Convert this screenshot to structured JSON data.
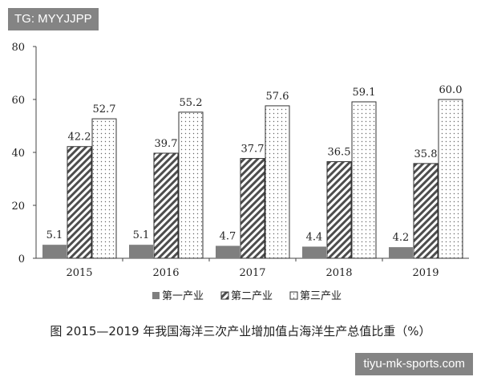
{
  "watermarks": {
    "top": "TG: MYYJJPP",
    "bottom": "tiyu-mk-sports.com"
  },
  "caption": "图 2015—2019 年我国海洋三次产业增加值占海洋生产总值比重（%）",
  "chart_data": {
    "type": "bar",
    "categories": [
      "2015",
      "2016",
      "2017",
      "2018",
      "2019"
    ],
    "series": [
      {
        "name": "第一产业",
        "values": [
          5.1,
          5.1,
          4.7,
          4.4,
          4.2
        ],
        "fill": "solid-gray",
        "color": "#7f7f7f"
      },
      {
        "name": "第二产业",
        "values": [
          42.2,
          39.7,
          37.7,
          36.5,
          35.8
        ],
        "fill": "diagonal-hatch",
        "color": "#4d4d4d"
      },
      {
        "name": "第三产业",
        "values": [
          52.7,
          55.2,
          57.6,
          59.1,
          60.0
        ],
        "fill": "dotted",
        "color": "#555555"
      }
    ],
    "ylim": [
      0,
      80
    ],
    "yticks": [
      0,
      20,
      40,
      60,
      80
    ],
    "grid": false,
    "legend": "bottom"
  }
}
